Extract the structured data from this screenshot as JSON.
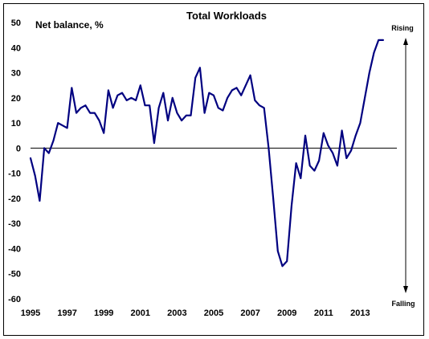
{
  "chart_data": {
    "type": "line",
    "title": "Total Workloads",
    "ylabel": "Net balance, %",
    "xlabel": "",
    "ylim": [
      -60,
      50
    ],
    "xlim": [
      1995,
      2015
    ],
    "yticks": [
      50,
      40,
      30,
      20,
      10,
      0,
      -10,
      -20,
      -30,
      -40,
      -50,
      -60
    ],
    "xticks": [
      1995,
      1997,
      1999,
      2001,
      2003,
      2005,
      2007,
      2009,
      2011,
      2013
    ],
    "ytick_labels": [
      "50",
      "40",
      "30",
      "20",
      "10",
      "0",
      "-10",
      "-20",
      "-30",
      "-40",
      "-50",
      "-60"
    ],
    "xtick_labels": [
      "1995",
      "1997",
      "1999",
      "2001",
      "2003",
      "2005",
      "2007",
      "2009",
      "2011",
      "2013"
    ],
    "annotations": {
      "top": "Rising",
      "bottom": "Falling"
    },
    "grid": false,
    "legend": "none",
    "series_color": "#000080",
    "series": [
      {
        "x": [
          1995.0,
          1995.25,
          1995.5,
          1995.75,
          1996.0,
          1996.25,
          1996.5,
          1996.75,
          1997.0,
          1997.25,
          1997.5,
          1997.75,
          1998.0,
          1998.25,
          1998.5,
          1998.75,
          1999.0,
          1999.25,
          1999.5,
          1999.75,
          2000.0,
          2000.25,
          2000.5,
          2000.75,
          2001.0,
          2001.25,
          2001.5,
          2001.75,
          2002.0,
          2002.25,
          2002.5,
          2002.75,
          2003.0,
          2003.25,
          2003.5,
          2003.75,
          2004.0,
          2004.25,
          2004.5,
          2004.75,
          2005.0,
          2005.25,
          2005.5,
          2005.75,
          2006.0,
          2006.25,
          2006.5,
          2006.75,
          2007.0,
          2007.25,
          2007.5,
          2007.75,
          2008.0,
          2008.25,
          2008.5,
          2008.75,
          2009.0,
          2009.25,
          2009.5,
          2009.75,
          2010.0,
          2010.25,
          2010.5,
          2010.75,
          2011.0,
          2011.25,
          2011.5,
          2011.75,
          2012.0,
          2012.25,
          2012.5,
          2012.75,
          2013.0,
          2013.25,
          2013.5,
          2013.75,
          2014.0,
          2014.25
        ],
        "values": [
          -4,
          -11,
          -21,
          0,
          -2,
          3,
          10,
          9,
          8,
          24,
          14,
          16,
          17,
          14,
          14,
          11,
          6,
          23,
          16,
          21,
          22,
          19,
          20,
          19,
          25,
          17,
          17,
          2,
          16,
          22,
          11,
          20,
          14,
          11,
          13,
          13,
          28,
          32,
          14,
          22,
          21,
          16,
          15,
          20,
          23,
          24,
          21,
          25,
          29,
          19,
          17,
          16,
          0,
          -20,
          -41,
          -47,
          -45,
          -23,
          -6,
          -12,
          5,
          -7,
          -9,
          -5,
          6,
          1,
          -2,
          -7,
          7,
          -4,
          -1,
          5,
          10,
          20,
          30,
          38,
          43,
          43
        ]
      }
    ]
  }
}
